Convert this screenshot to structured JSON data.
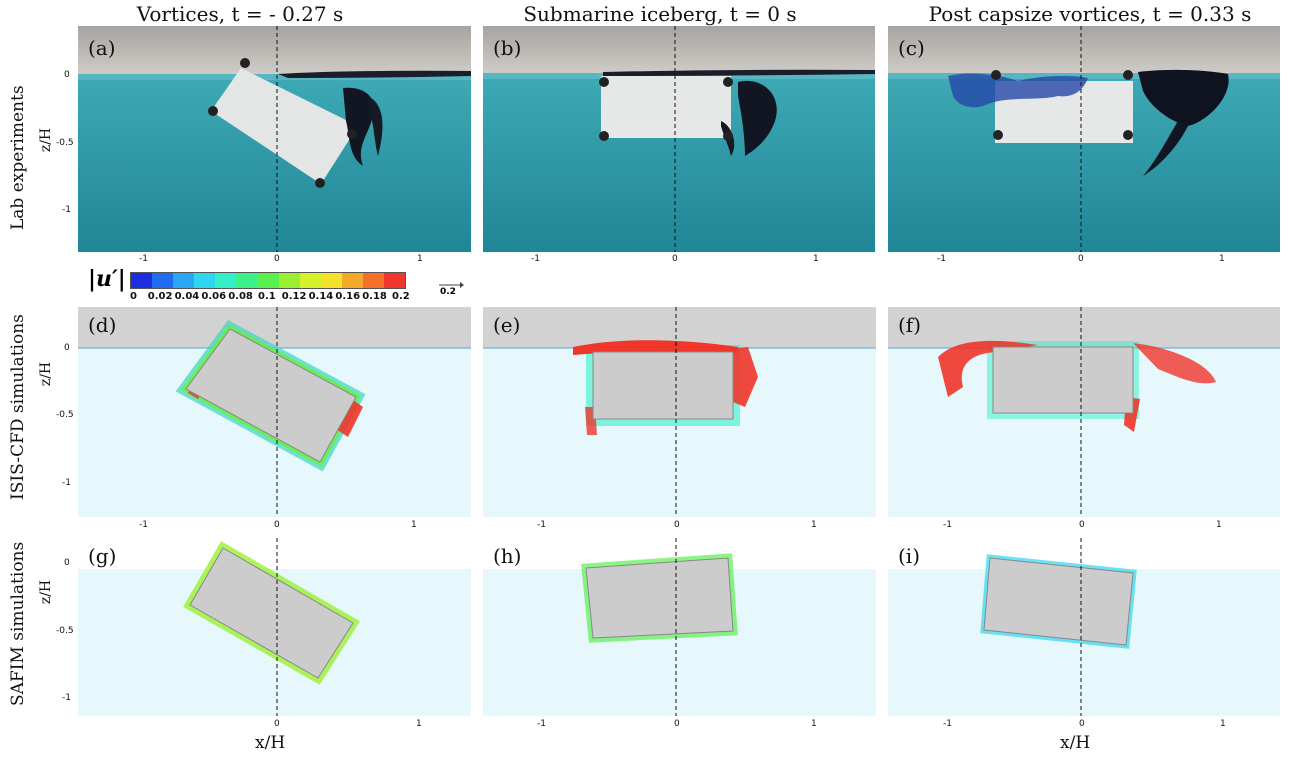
{
  "columns": [
    {
      "title": "Vortices, t = - 0.27 s"
    },
    {
      "title": "Submarine iceberg, t = 0 s"
    },
    {
      "title": "Post capsize vortices, t = 0.33 s"
    }
  ],
  "rows": [
    {
      "label": "Lab experiments"
    },
    {
      "label": "ISIS-CFD simulations"
    },
    {
      "label": "SAFIM simulations"
    }
  ],
  "panels": [
    "(a)",
    "(b)",
    "(c)",
    "(d)",
    "(e)",
    "(f)",
    "(g)",
    "(h)",
    "(i)"
  ],
  "axes": {
    "zlabel": "z/H",
    "xlabel": "x/H",
    "xticks": [
      "-1",
      "0",
      "1"
    ],
    "zticks_lab": [
      "0",
      "-0.5",
      "-1"
    ],
    "zticks_cfd": [
      "0",
      "-0.5",
      "-1"
    ],
    "zticks_safim": [
      "0",
      "-0.5",
      "-1"
    ]
  },
  "colorbar": {
    "symbol": "|u′|",
    "ticks": [
      "0",
      "0.02",
      "0.04",
      "0.06",
      "0.08",
      "0.1",
      "0.12",
      "0.14",
      "0.16",
      "0.18",
      "0.2"
    ],
    "reference_vector": "0.2",
    "colors": [
      "#1b2fe0",
      "#1f6cf0",
      "#2aa8f5",
      "#30d6f0",
      "#34f0c8",
      "#3cf08a",
      "#5af050",
      "#9af030",
      "#d6f02a",
      "#f5e02a",
      "#f5a92a",
      "#f5712a",
      "#f0352a"
    ]
  }
}
